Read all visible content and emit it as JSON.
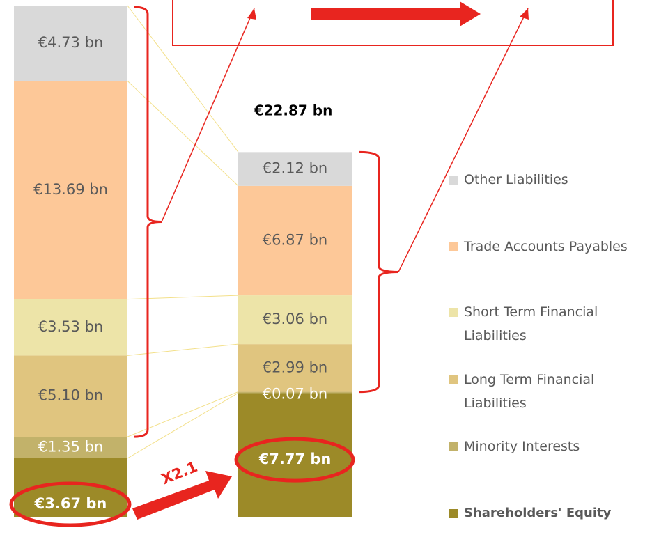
{
  "chart_data": {
    "type": "bar",
    "stacked": true,
    "categories": [
      null,
      null
    ],
    "series": [
      {
        "name": "Other Liabilities",
        "color": "#d9d9d9",
        "values": [
          4.73,
          2.12
        ],
        "value_labels": [
          "€4.73 bn",
          "€2.12 bn"
        ]
      },
      {
        "name": "Trade Accounts Payables",
        "color": "#fdc898",
        "values": [
          13.69,
          6.87
        ],
        "value_labels": [
          "€13.69 bn",
          "€6.87 bn"
        ]
      },
      {
        "name": "Short Term Financial Liabilities",
        "color": "#ede4a8",
        "values": [
          3.53,
          3.06
        ],
        "value_labels": [
          "€3.53 bn",
          "€3.06 bn"
        ]
      },
      {
        "name": "Long Term Financial Liabilities",
        "color": "#e0c57f",
        "values": [
          5.1,
          2.99
        ],
        "value_labels": [
          "€5.10 bn",
          "€2.99 bn"
        ]
      },
      {
        "name": "Minority Interests",
        "color": "#c2b26a",
        "values": [
          1.35,
          0.07
        ],
        "value_labels": [
          "€1.35 bn",
          "€0.07 bn"
        ]
      },
      {
        "name": "Shareholders' Equity",
        "color": "#9c8a28",
        "values": [
          3.67,
          7.77
        ],
        "value_labels": [
          "€3.67 bn",
          "€7.77 bn"
        ]
      }
    ],
    "ylim": [
      0,
      32.07
    ],
    "annotations": [
      "€22.87 bn",
      "X2.1"
    ]
  }
}
